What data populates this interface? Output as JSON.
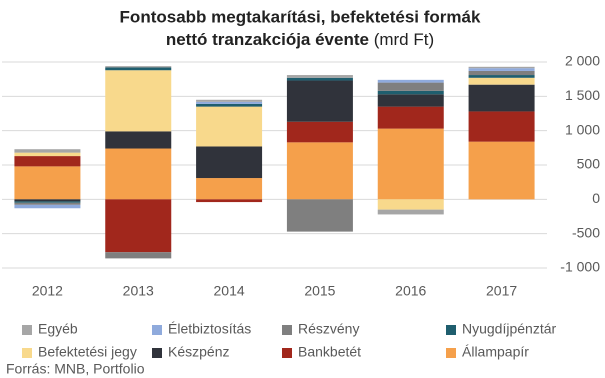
{
  "chart_data": {
    "type": "stacked-bar",
    "title_lines": [
      "Fontosabb megtakarítási, befektetési formák",
      "nettó tranzakciója évente"
    ],
    "unit": "(mrd Ft)",
    "source": "Forrás: MNB, Portfolio",
    "categories": [
      "2012",
      "2013",
      "2014",
      "2015",
      "2016",
      "2017"
    ],
    "ylim": [
      -1000,
      2000
    ],
    "yticks": [
      {
        "value": 2000,
        "label": "2 000"
      },
      {
        "value": 1500,
        "label": "1 500"
      },
      {
        "value": 1000,
        "label": "1 000"
      },
      500,
      0,
      -500,
      {
        "value": -1000,
        "label": "-1 000"
      }
    ],
    "grid": true,
    "series": [
      {
        "name": "Egyéb",
        "color": "#a6a6a6",
        "values": [
          50,
          20,
          30,
          40,
          -70,
          20
        ]
      },
      {
        "name": "Életbiztosítás",
        "color": "#8faadc",
        "values": [
          -50,
          0,
          30,
          0,
          40,
          40
        ]
      },
      {
        "name": "Részvény",
        "color": "#7f7f7f",
        "values": [
          -30,
          -90,
          0,
          -470,
          120,
          60
        ]
      },
      {
        "name": "Nyugdíjpénztár",
        "color": "#1f5e6e",
        "values": [
          -20,
          40,
          40,
          40,
          50,
          40
        ]
      },
      {
        "name": "Befektetési jegy",
        "color": "#f8d98c",
        "values": [
          50,
          890,
          580,
          0,
          -150,
          100
        ]
      },
      {
        "name": "Készpénz",
        "color": "#30333b",
        "values": [
          -30,
          250,
          460,
          600,
          180,
          390
        ]
      },
      {
        "name": "Bankbetét",
        "color": "#a1271c",
        "values": [
          150,
          -770,
          -40,
          300,
          320,
          440
        ]
      },
      {
        "name": "Állampapír",
        "color": "#f5a04b",
        "values": [
          480,
          740,
          310,
          830,
          1030,
          840
        ]
      }
    ]
  }
}
